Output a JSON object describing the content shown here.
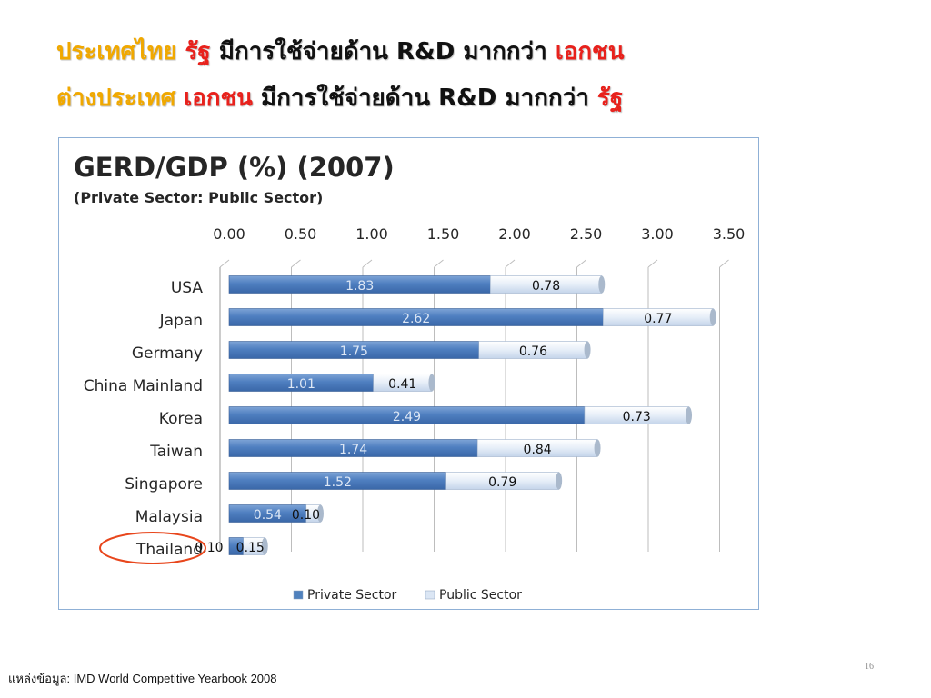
{
  "headline": {
    "line1": [
      {
        "text": "ประเทศไทย ",
        "color": "gold"
      },
      {
        "text": "รัฐ",
        "color": "red"
      },
      {
        "text": " มีการใช้จ่ายด้าน R&D มากกว่า ",
        "color": "black"
      },
      {
        "text": "เอกชน",
        "color": "red"
      }
    ],
    "line2": [
      {
        "text": "ต่างประเทศ ",
        "color": "gold"
      },
      {
        "text": "เอกชน",
        "color": "red"
      },
      {
        "text": " มีการใช้จ่ายด้าน R&D มากกว่า ",
        "color": "black"
      },
      {
        "text": "รัฐ",
        "color": "red"
      }
    ]
  },
  "chart_data": {
    "type": "bar",
    "orientation": "horizontal",
    "stacked": true,
    "title": "GERD/GDP (%) (2007)",
    "subtitle": "(Private Sector: Public Sector)",
    "categories": [
      "USA",
      "Japan",
      "Germany",
      "China Mainland",
      "Korea",
      "Taiwan",
      "Singapore",
      "Malaysia",
      "Thailand"
    ],
    "series": [
      {
        "name": "Private Sector",
        "values": [
          1.83,
          2.62,
          1.75,
          1.01,
          2.49,
          1.74,
          1.52,
          0.54,
          0.1
        ],
        "color": "#4f81bd"
      },
      {
        "name": "Public Sector",
        "values": [
          0.78,
          0.77,
          0.76,
          0.41,
          0.73,
          0.84,
          0.79,
          0.1,
          0.15
        ],
        "color": "#dbe6f4"
      }
    ],
    "xlim": [
      0,
      3.5
    ],
    "xticks": [
      "0.00",
      "0.50",
      "1.00",
      "1.50",
      "2.00",
      "2.50",
      "3.00",
      "3.50"
    ],
    "value_labels": [
      [
        "1.83",
        "0.78"
      ],
      [
        "2.62",
        "0.77"
      ],
      [
        "1.75",
        "0.76"
      ],
      [
        "1.01",
        "0.41"
      ],
      [
        "2.49",
        "0.73"
      ],
      [
        "1.74",
        "0.84"
      ],
      [
        "1.52",
        "0.79"
      ],
      [
        "0.54",
        "0.10"
      ],
      [
        "0.10",
        "0.15"
      ]
    ],
    "x_axis_position": "top",
    "grid": true,
    "legend": "bottom",
    "highlighted_category": "Thailand",
    "highlight_color": "#e8461c"
  },
  "slide_number": "16",
  "source": "แหล่งข้อมูล: IMD World Competitive Yearbook 2008"
}
